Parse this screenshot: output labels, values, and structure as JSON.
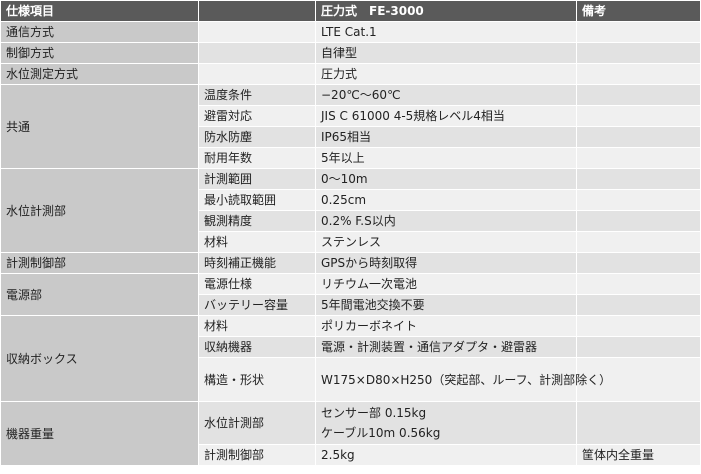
{
  "header": {
    "item": "仕様項目",
    "sub": "",
    "model": "圧力式　FE-3000",
    "note": "備考"
  },
  "rows": {
    "comm": {
      "label": "通信方式",
      "value": "LTE Cat.1",
      "note": ""
    },
    "control": {
      "label": "制御方式",
      "value": "自律型",
      "note": ""
    },
    "method": {
      "label": "水位測定方式",
      "value": "圧力式",
      "note": ""
    },
    "common": {
      "label": "共通",
      "temp": {
        "label": "温度条件",
        "value": "−20℃〜60℃"
      },
      "lightning": {
        "label": "避雷対応",
        "value": "JIS C 61000 4-5規格レベル4相当"
      },
      "waterproof": {
        "label": "防水防塵",
        "value": "IP65相当"
      },
      "life": {
        "label": "耐用年数",
        "value": "5年以上"
      }
    },
    "water_level": {
      "label": "水位計測部",
      "range": {
        "label": "計測範囲",
        "value": "0〜10m"
      },
      "min_read": {
        "label": "最小読取範囲",
        "value": "0.25cm"
      },
      "accuracy": {
        "label": "観測精度",
        "value": "0.2% F.S以内"
      },
      "material": {
        "label": "材料",
        "value": "ステンレス"
      }
    },
    "meas_control": {
      "label": "計測制御部",
      "clock": {
        "label": "時刻補正機能",
        "value": "GPSから時刻取得"
      }
    },
    "power": {
      "label": "電源部",
      "spec": {
        "label": "電源仕様",
        "value": "リチウム一次電池"
      },
      "battery": {
        "label": "バッテリー容量",
        "value": "5年間電池交換不要"
      }
    },
    "box": {
      "label": "収納ボックス",
      "material": {
        "label": "材料",
        "value": "ポリカーボネイト"
      },
      "devices": {
        "label": "収納機器",
        "value": "電源・計測装置・通信アダプタ・避雷器"
      },
      "structure": {
        "label": "構造・形状",
        "value": "W175×D80×H250（突起部、ルーフ、計測部除く）"
      }
    },
    "weight": {
      "label": "機器重量",
      "water_level": {
        "label": "水位計測部",
        "value_1": "センサー部 0.15kg",
        "value_2": "ケーブル10m 0.56kg"
      },
      "control": {
        "label": "計測制御部",
        "value": "2.5kg",
        "note": "筐体内全重量"
      }
    }
  }
}
